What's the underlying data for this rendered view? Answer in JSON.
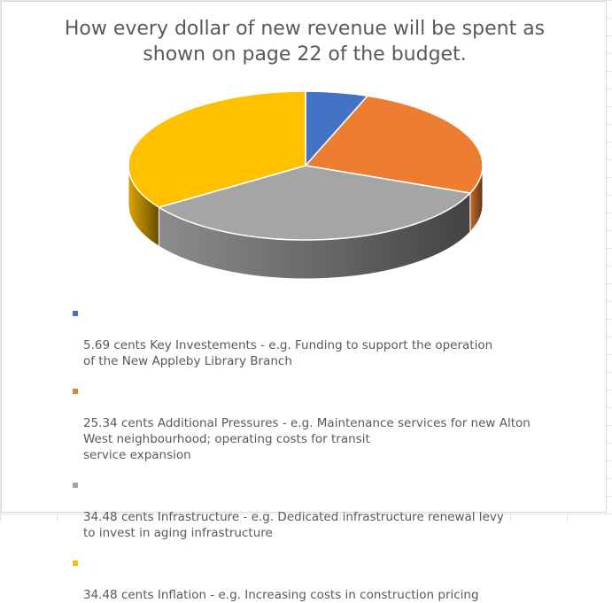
{
  "chart_data": {
    "type": "pie",
    "title": "How every dollar of new revenue will be spent as\nshown on page 22 of the budget.",
    "unit": "cents",
    "slices": [
      {
        "label": "5.69 cents Key Investements - e.g. Funding to support the operation\nof the New Appleby Library Branch",
        "value": 5.69,
        "color": "#4472C4"
      },
      {
        "label": "25.34 cents Additional Pressures - e.g. Maintenance services for new Alton\nWest neighbourhood; operating costs for transit\nservice expansion",
        "value": 25.34,
        "color": "#ED7D31"
      },
      {
        "label": "34.48 cents Infrastructure - e.g. Dedicated infrastructure renewal levy\nto invest in aging infrastructure",
        "value": 34.48,
        "color": "#A5A5A5"
      },
      {
        "label": "34.48 cents Inflation - e.g. Increasing costs in construction pricing",
        "value": 34.48,
        "color": "#FFC000"
      }
    ],
    "legend_position": "bottom",
    "style": "3d"
  }
}
